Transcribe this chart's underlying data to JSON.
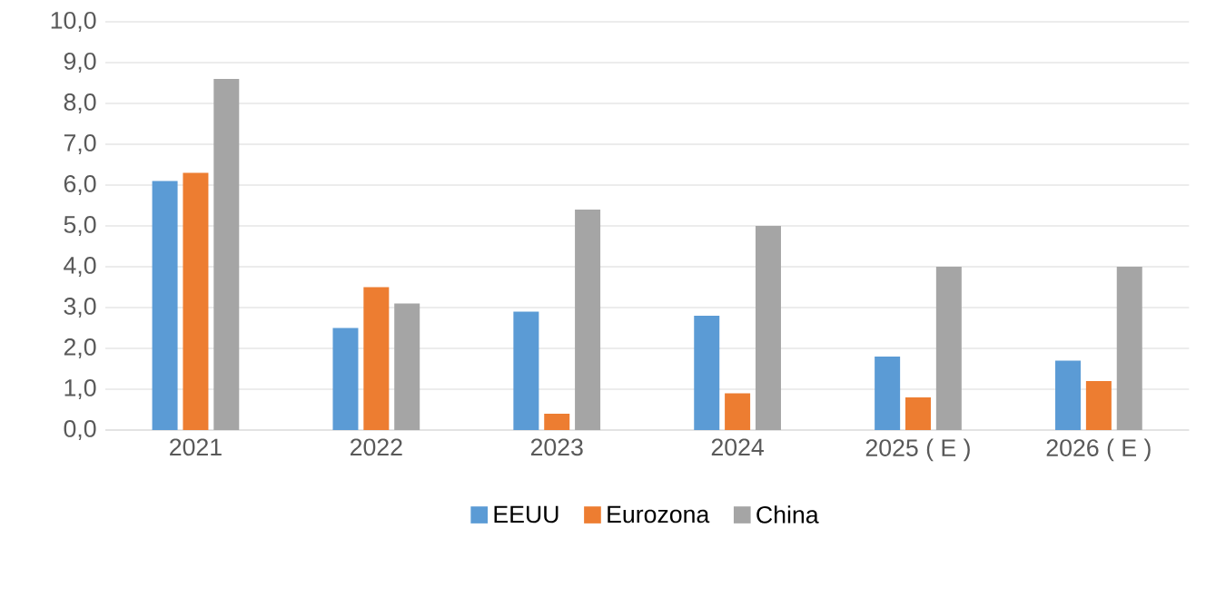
{
  "chart_data": {
    "type": "bar",
    "categories": [
      "2021",
      "2022",
      "2023",
      "2024",
      "2025 ( E )",
      "2026 ( E )"
    ],
    "series": [
      {
        "name": "EEUU",
        "color": "#5b9bd5",
        "values": [
          6.1,
          2.5,
          2.9,
          2.8,
          1.8,
          1.7
        ]
      },
      {
        "name": "Eurozona",
        "color": "#ed7d31",
        "values": [
          6.3,
          3.5,
          0.4,
          0.9,
          0.8,
          1.2
        ]
      },
      {
        "name": "China",
        "color": "#a5a5a5",
        "values": [
          8.6,
          3.1,
          5.4,
          5.0,
          4.0,
          4.0
        ]
      }
    ],
    "ylim": [
      0,
      10
    ],
    "yticks": [
      {
        "value": 0,
        "label": "0,0"
      },
      {
        "value": 1,
        "label": "1,0"
      },
      {
        "value": 2,
        "label": "2,0"
      },
      {
        "value": 3,
        "label": "3,0"
      },
      {
        "value": 4,
        "label": "4,0"
      },
      {
        "value": 5,
        "label": "5,0"
      },
      {
        "value": 6,
        "label": "6,0"
      },
      {
        "value": 7,
        "label": "7,0"
      },
      {
        "value": 8,
        "label": "8,0"
      },
      {
        "value": 9,
        "label": "9,0"
      },
      {
        "value": 10,
        "label": "10,0"
      }
    ],
    "grid": "y",
    "legend": "bottom"
  }
}
